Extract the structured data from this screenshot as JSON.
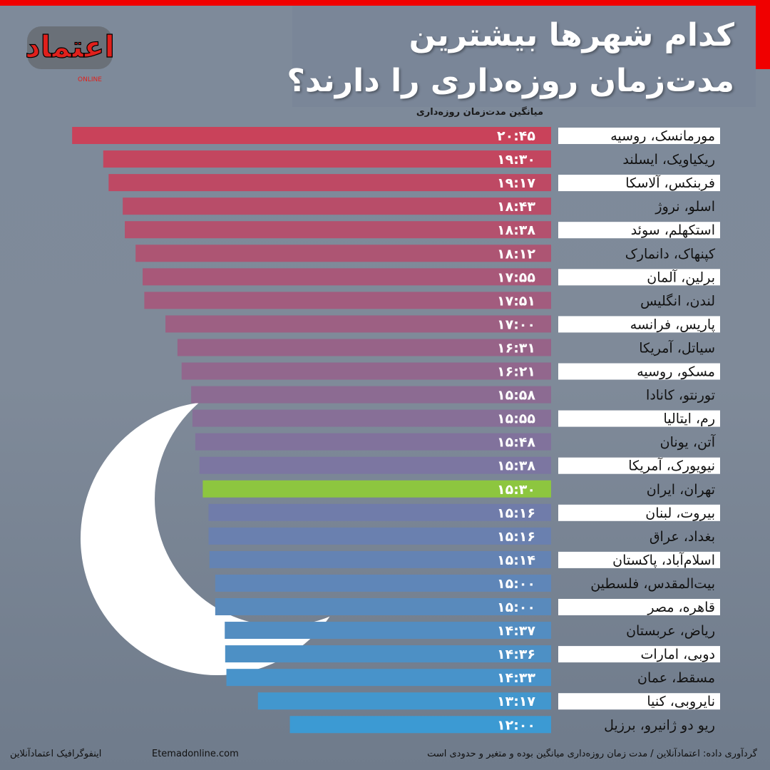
{
  "header": {
    "title": "کدام شهرها بیشترین مدت‌زمان روزه‌داری را دارند؟",
    "logo_text": "اعتماد",
    "logo_sub": "ONLINE"
  },
  "colors": {
    "frame": "#f00000",
    "top": "#c9425a",
    "mid": "#7d75a0",
    "bottom": "#3c9ad3",
    "highlight": "#8dc63f"
  },
  "chart_data": {
    "type": "bar",
    "title": "کدام شهرها بیشترین مدت‌زمان روزه‌داری را دارند؟",
    "ylabel": "میانگین مدت‌زمان روزه‌داری",
    "orientation": "horizontal",
    "highlight": "تهران، ایران",
    "categories": [
      "مورمانسک، روسیه",
      "ریکیاویک، ایسلند",
      "فربنکس، آلاسکا",
      "اسلو، نروژ",
      "استکهلم، سوئد",
      "کپنهاک، دانمارک",
      "برلین، آلمان",
      "لندن، انگلیس",
      "پاریس، فرانسه",
      "سیاتل، آمریکا",
      "مسکو، روسیه",
      "تورنتو، کانادا",
      "رم، ایتالیا",
      "آتن، یونان",
      "نیویورک، آمریکا",
      "تهران، ایران",
      "بیروت، لبنان",
      "بغداد، عراق",
      "اسلام‌آباد، پاکستان",
      "بیت‌المقدس، فلسطین",
      "قاهره، مصر",
      "ریاض، عربستان",
      "دوبی، امارات",
      "مسقط، عمان",
      "نایروبی، کنیا",
      "ریو دو ژانیرو، برزیل"
    ],
    "labels": [
      "۲۰:۴۵",
      "۱۹:۳۰",
      "۱۹:۱۷",
      "۱۸:۴۳",
      "۱۸:۳۸",
      "۱۸:۱۲",
      "۱۷:۵۵",
      "۱۷:۵۱",
      "۱۷:۰۰",
      "۱۶:۳۱",
      "۱۶:۲۱",
      "۱۵:۵۸",
      "۱۵:۵۵",
      "۱۵:۴۸",
      "۱۵:۳۸",
      "۱۵:۳۰",
      "۱۵:۱۶",
      "۱۵:۱۶",
      "۱۵:۱۴",
      "۱۵:۰۰",
      "۱۵:۰۰",
      "۱۴:۳۷",
      "۱۴:۳۶",
      "۱۴:۳۳",
      "۱۳:۱۷",
      "۱۲:۰۰"
    ],
    "values_minutes": [
      1245,
      1170,
      1157,
      1123,
      1118,
      1092,
      1075,
      1071,
      1020,
      991,
      981,
      958,
      955,
      948,
      938,
      930,
      916,
      916,
      914,
      900,
      900,
      877,
      876,
      873,
      797,
      720
    ]
  },
  "footer": {
    "source": "گردآوری داده: اعتمادآنلاین / مدت زمان روزه‌داری میانگین بوده و متغیر و حدودی است",
    "site": "Etemadonline.com",
    "credit": "اینفوگرافیک اعتمادآنلاین"
  }
}
